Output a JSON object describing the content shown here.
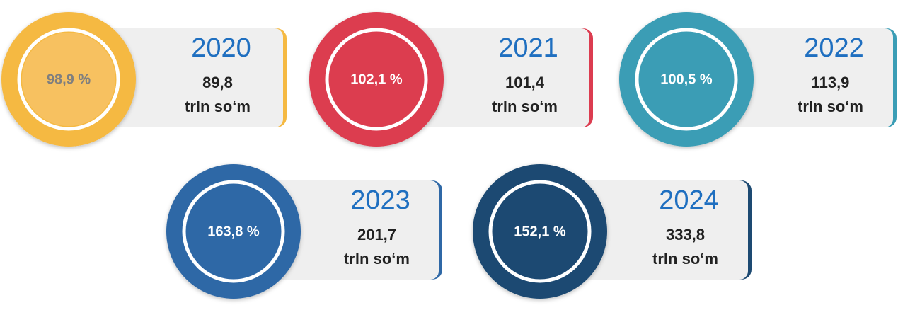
{
  "items": [
    {
      "year": "2020",
      "percent": "98,9 %",
      "amount": "89,8",
      "unit": "trln so‘m",
      "color": "#f5b942",
      "text_color": "#7f7f7f"
    },
    {
      "year": "2021",
      "percent": "102,1 %",
      "amount": "101,4",
      "unit": "trln so‘m",
      "color": "#dc3c50",
      "text_color": "#ffffff"
    },
    {
      "year": "2022",
      "percent": "100,5 %",
      "amount": "113,9",
      "unit": "trln so‘m",
      "color": "#3a9db5",
      "text_color": "#ffffff"
    },
    {
      "year": "2023",
      "percent": "163,8 %",
      "amount": "201,7",
      "unit": "trln so‘m",
      "color": "#2f68a6",
      "text_color": "#ffffff"
    },
    {
      "year": "2024",
      "percent": "152,1 %",
      "amount": "333,8",
      "unit": "trln so‘m",
      "color": "#1d4a72",
      "text_color": "#ffffff"
    }
  ]
}
